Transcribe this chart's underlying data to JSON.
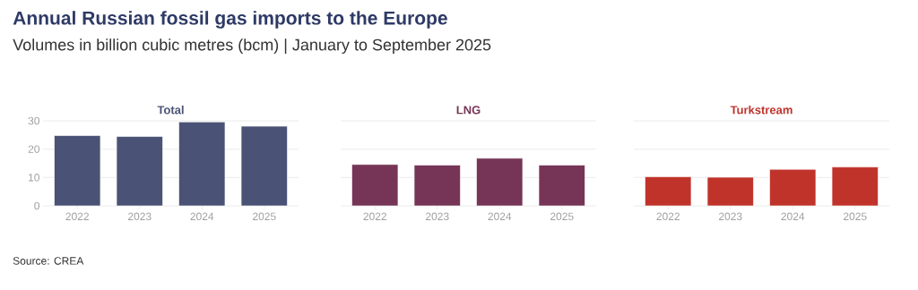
{
  "chart_data": [
    {
      "type": "other",
      "title": "Annual Russian fossil gas imports to the Europe",
      "subtitle": "Volumes in billion cubic metres (bcm) | January to September 2025",
      "annotations": [
        "Source: CREA"
      ]
    },
    {
      "type": "bar",
      "title": "Total",
      "categories": [
        "2022",
        "2023",
        "2024",
        "2025"
      ],
      "values": [
        24.8,
        24.5,
        29.6,
        28.1
      ],
      "color": "#4a5275",
      "ylim": [
        0,
        30
      ],
      "yticks": [
        0,
        10,
        20,
        30
      ],
      "grid": "y"
    },
    {
      "type": "bar",
      "title": "LNG",
      "categories": [
        "2022",
        "2023",
        "2024",
        "2025"
      ],
      "values": [
        14.6,
        14.4,
        16.8,
        14.4
      ],
      "color": "#763556",
      "ylim": [
        0,
        30
      ],
      "yticks": [
        0,
        10,
        20,
        30
      ],
      "grid": "y",
      "tick_labels": "x"
    },
    {
      "type": "bar",
      "title": "Turkstream",
      "categories": [
        "2022",
        "2023",
        "2024",
        "2025"
      ],
      "values": [
        10.3,
        10.1,
        12.9,
        13.7
      ],
      "color": "#c0332b",
      "ylim": [
        0,
        30
      ],
      "yticks": [
        0,
        10,
        20,
        30
      ],
      "grid": "y",
      "tick_labels": "x"
    }
  ]
}
